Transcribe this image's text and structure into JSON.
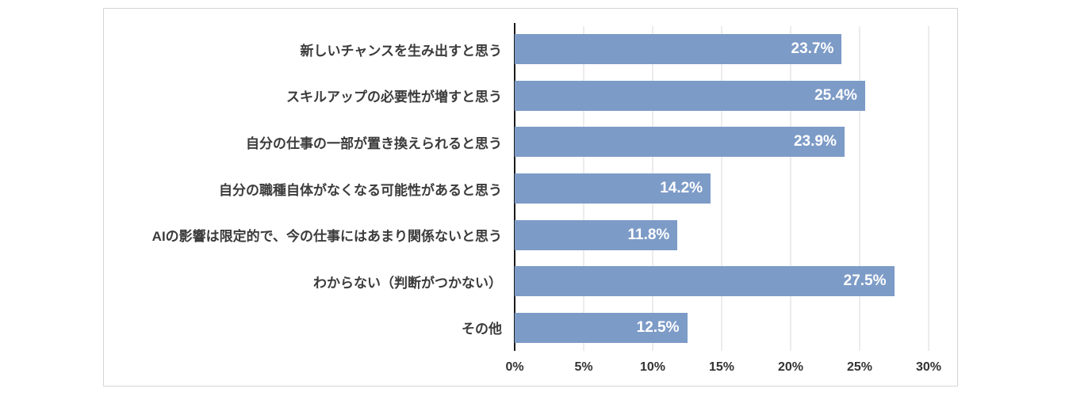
{
  "chart_data": {
    "type": "bar",
    "orientation": "horizontal",
    "title": "",
    "xlabel": "",
    "ylabel": "",
    "categories": [
      "新しいチャンスを生み出すと思う",
      "スキルアップの必要性が増すと思う",
      "自分の仕事の一部が置き換えられると思う",
      "自分の職種自体がなくなる可能性があると思う",
      "AIの影響は限定的で、今の仕事にはあまり関係ないと思う",
      "わからない（判断がつかない）",
      "その他"
    ],
    "values": [
      23.7,
      25.4,
      23.9,
      14.2,
      11.8,
      27.5,
      12.5
    ],
    "value_labels": [
      "23.7%",
      "25.4%",
      "23.9%",
      "14.2%",
      "11.8%",
      "27.5%",
      "12.5%"
    ],
    "xlim": [
      0,
      30
    ],
    "x_ticks": [
      "0%",
      "5%",
      "10%",
      "15%",
      "20%",
      "25%",
      "30%"
    ],
    "x_tick_values": [
      0,
      5,
      10,
      15,
      20,
      25,
      30
    ],
    "grid": true,
    "legend": "none",
    "colors": {
      "bar": "#7d9bc7",
      "value_label": "#ffffff",
      "gridline": "#d9d9d9",
      "axis": "#1a1a1a",
      "tick_label": "#333333",
      "category_label": "#3b3b3b",
      "border": "#d4d4d4",
      "background": "#ffffff"
    }
  }
}
